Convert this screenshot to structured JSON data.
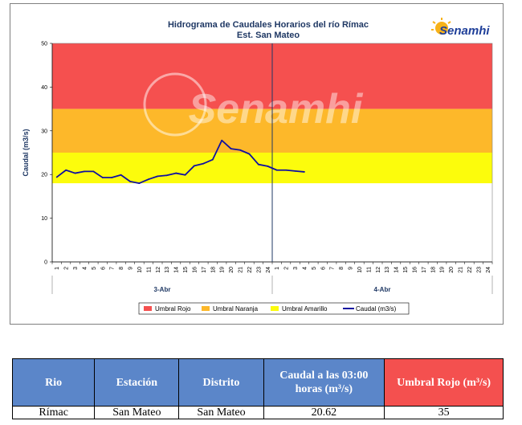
{
  "chart_data": {
    "type": "line",
    "title": "Hidrograma de Caudales Horarios del río Rímac",
    "subtitle": "Est. San Mateo",
    "ylabel": "Caudal  (m3/s)",
    "ylim": [
      0,
      50
    ],
    "yticks": [
      "0",
      "10",
      "20",
      "30",
      "40",
      "50"
    ],
    "x_ticks": [
      "1",
      "2",
      "3",
      "4",
      "5",
      "6",
      "7",
      "8",
      "9",
      "10",
      "11",
      "12",
      "13",
      "14",
      "15",
      "16",
      "17",
      "18",
      "19",
      "20",
      "21",
      "22",
      "23",
      "24",
      "1",
      "2",
      "3",
      "4",
      "5",
      "6",
      "7",
      "8",
      "9",
      "10",
      "11",
      "12",
      "13",
      "14",
      "15",
      "16",
      "17",
      "18",
      "19",
      "20",
      "21",
      "22",
      "23",
      "24"
    ],
    "day_labels": [
      "3-Abr",
      "4-Abr"
    ],
    "thresholds": [
      {
        "name": "Umbral Rojo",
        "from": 35,
        "to": 50,
        "color": "#f5504f"
      },
      {
        "name": "Umbral Naranja",
        "from": 25,
        "to": 35,
        "color": "#fdb82a"
      },
      {
        "name": "Umbral Amarillo",
        "from": 18,
        "to": 25,
        "color": "#fcfc0c"
      }
    ],
    "series": [
      {
        "name": "Caudal (m3/s)",
        "color": "#1010a0",
        "x": [
          0,
          1,
          2,
          3,
          4,
          5,
          6,
          7,
          8,
          9,
          10,
          11,
          12,
          13,
          14,
          15,
          16,
          17,
          18,
          19,
          20,
          21,
          22,
          23,
          24,
          25,
          26,
          27
        ],
        "values": [
          19.4,
          21.0,
          20.3,
          20.7,
          20.7,
          19.3,
          19.3,
          19.9,
          18.4,
          18.0,
          18.9,
          19.6,
          19.8,
          20.3,
          19.9,
          22.0,
          22.5,
          23.4,
          27.8,
          25.9,
          25.6,
          24.7,
          22.3,
          21.9,
          21.0,
          21.0,
          20.8,
          20.6
        ]
      }
    ],
    "legend": [
      "Umbral Rojo",
      "Umbral Naranja",
      "Umbral Amarillo",
      "Caudal (m3/s)"
    ],
    "legend_position": "bottom",
    "grid": false
  },
  "logo_text": "Senamhi",
  "watermark_text": "Senamhi",
  "table": {
    "headers": [
      "Rio",
      "Estación",
      "Distrito",
      "Caudal a las 03:00 horas (m³/s)",
      "Umbral Rojo (m³/s)"
    ],
    "rows": [
      [
        "Rímac",
        "San Mateo",
        "San Mateo",
        "20.62",
        "35"
      ]
    ]
  }
}
